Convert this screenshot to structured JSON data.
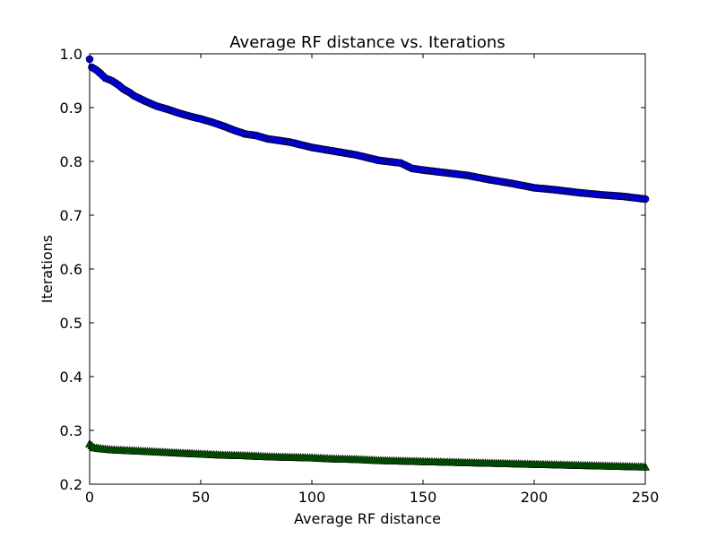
{
  "chart_data": {
    "type": "scatter",
    "title": "Average RF distance vs. Iterations",
    "xlabel": "Average RF distance",
    "ylabel": "Iterations",
    "xlim": [
      0,
      250
    ],
    "ylim": [
      0.2,
      1.0
    ],
    "xticks": [
      0,
      50,
      100,
      150,
      200,
      250
    ],
    "yticks": [
      0.2,
      0.3,
      0.4,
      0.5,
      0.6,
      0.7,
      0.8,
      0.9,
      1.0
    ],
    "xtick_labels": [
      "0",
      "50",
      "100",
      "150",
      "200",
      "250"
    ],
    "ytick_labels": [
      "0.2",
      "0.3",
      "0.4",
      "0.5",
      "0.6",
      "0.7",
      "0.8",
      "0.9",
      "1.0"
    ],
    "grid": false,
    "series": [
      {
        "marker": "circle",
        "color": "#0000ff",
        "points": [
          [
            0,
            0.99
          ],
          [
            1,
            0.975
          ],
          [
            3,
            0.97
          ],
          [
            5,
            0.963
          ],
          [
            7,
            0.955
          ],
          [
            10,
            0.95
          ],
          [
            13,
            0.942
          ],
          [
            15,
            0.935
          ],
          [
            18,
            0.928
          ],
          [
            20,
            0.922
          ],
          [
            25,
            0.912
          ],
          [
            30,
            0.903
          ],
          [
            35,
            0.897
          ],
          [
            40,
            0.89
          ],
          [
            45,
            0.884
          ],
          [
            50,
            0.879
          ],
          [
            55,
            0.873
          ],
          [
            60,
            0.866
          ],
          [
            65,
            0.858
          ],
          [
            70,
            0.851
          ],
          [
            75,
            0.848
          ],
          [
            80,
            0.842
          ],
          [
            90,
            0.836
          ],
          [
            100,
            0.826
          ],
          [
            110,
            0.819
          ],
          [
            120,
            0.812
          ],
          [
            125,
            0.807
          ],
          [
            130,
            0.802
          ],
          [
            140,
            0.797
          ],
          [
            145,
            0.787
          ],
          [
            150,
            0.784
          ],
          [
            160,
            0.779
          ],
          [
            170,
            0.774
          ],
          [
            180,
            0.766
          ],
          [
            190,
            0.759
          ],
          [
            200,
            0.751
          ],
          [
            210,
            0.747
          ],
          [
            220,
            0.742
          ],
          [
            230,
            0.738
          ],
          [
            240,
            0.735
          ],
          [
            250,
            0.73
          ]
        ]
      },
      {
        "marker": "triangle",
        "color": "#006400",
        "points": [
          [
            0,
            0.275
          ],
          [
            2,
            0.268
          ],
          [
            5,
            0.266
          ],
          [
            10,
            0.264
          ],
          [
            15,
            0.263
          ],
          [
            20,
            0.262
          ],
          [
            30,
            0.26
          ],
          [
            40,
            0.258
          ],
          [
            50,
            0.256
          ],
          [
            60,
            0.254
          ],
          [
            70,
            0.253
          ],
          [
            80,
            0.251
          ],
          [
            90,
            0.25
          ],
          [
            100,
            0.249
          ],
          [
            110,
            0.247
          ],
          [
            120,
            0.246
          ],
          [
            130,
            0.244
          ],
          [
            140,
            0.243
          ],
          [
            150,
            0.242
          ],
          [
            160,
            0.241
          ],
          [
            170,
            0.24
          ],
          [
            180,
            0.239
          ],
          [
            190,
            0.238
          ],
          [
            200,
            0.237
          ],
          [
            210,
            0.236
          ],
          [
            220,
            0.235
          ],
          [
            230,
            0.234
          ],
          [
            240,
            0.233
          ],
          [
            250,
            0.232
          ]
        ]
      }
    ]
  }
}
